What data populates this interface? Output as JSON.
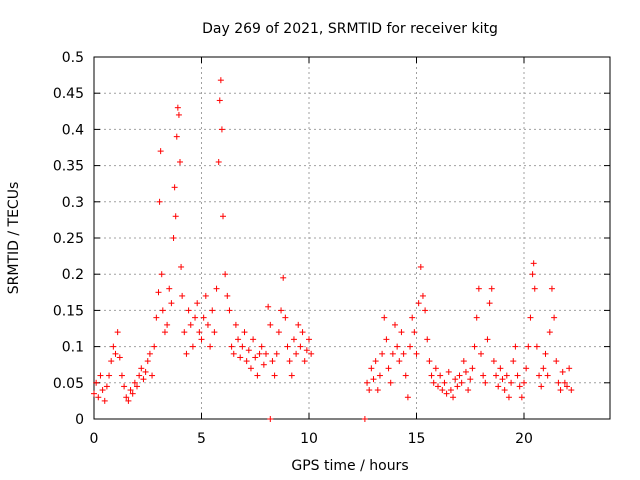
{
  "chart_data": {
    "type": "scatter",
    "title": "Day 269 of 2021, SRMTID for receiver kitg",
    "xlabel": "GPS time / hours",
    "ylabel": "SRMTID / TECUs",
    "xlim": [
      0,
      24
    ],
    "ylim": [
      0,
      0.5
    ],
    "grid": true,
    "marker": "+",
    "color": "#ff0000",
    "xticks": [
      {
        "value": 0,
        "label": "0"
      },
      {
        "value": 5,
        "label": "5"
      },
      {
        "value": 10,
        "label": "10"
      },
      {
        "value": 15,
        "label": "15"
      },
      {
        "value": 20,
        "label": "20"
      }
    ],
    "yticks": [
      {
        "value": 0,
        "label": "0"
      },
      {
        "value": 0.05,
        "label": "0.05"
      },
      {
        "value": 0.1,
        "label": "0.1"
      },
      {
        "value": 0.15,
        "label": "0.15"
      },
      {
        "value": 0.2,
        "label": "0.2"
      },
      {
        "value": 0.25,
        "label": "0.25"
      },
      {
        "value": 0.3,
        "label": "0.3"
      },
      {
        "value": 0.35,
        "label": "0.35"
      },
      {
        "value": 0.4,
        "label": "0.4"
      },
      {
        "value": 0.45,
        "label": "0.45"
      },
      {
        "value": 0.5,
        "label": "0.5"
      }
    ],
    "series": [
      {
        "name": "SRMTID",
        "points": [
          [
            0.0,
            0.035
          ],
          [
            0.1,
            0.05
          ],
          [
            0.2,
            0.03
          ],
          [
            0.3,
            0.06
          ],
          [
            0.4,
            0.04
          ],
          [
            0.5,
            0.025
          ],
          [
            0.6,
            0.045
          ],
          [
            0.7,
            0.06
          ],
          [
            0.8,
            0.08
          ],
          [
            0.9,
            0.1
          ],
          [
            1.0,
            0.09
          ],
          [
            1.1,
            0.12
          ],
          [
            1.2,
            0.085
          ],
          [
            1.3,
            0.06
          ],
          [
            1.4,
            0.045
          ],
          [
            1.5,
            0.03
          ],
          [
            1.6,
            0.025
          ],
          [
            1.7,
            0.04
          ],
          [
            1.8,
            0.035
          ],
          [
            1.9,
            0.05
          ],
          [
            2.0,
            0.045
          ],
          [
            2.1,
            0.06
          ],
          [
            2.2,
            0.07
          ],
          [
            2.3,
            0.055
          ],
          [
            2.4,
            0.065
          ],
          [
            2.5,
            0.08
          ],
          [
            2.6,
            0.09
          ],
          [
            2.7,
            0.06
          ],
          [
            2.8,
            0.1
          ],
          [
            2.9,
            0.14
          ],
          [
            3.0,
            0.175
          ],
          [
            3.05,
            0.3
          ],
          [
            3.1,
            0.37
          ],
          [
            3.15,
            0.2
          ],
          [
            3.2,
            0.15
          ],
          [
            3.3,
            0.12
          ],
          [
            3.4,
            0.13
          ],
          [
            3.5,
            0.18
          ],
          [
            3.6,
            0.16
          ],
          [
            3.7,
            0.25
          ],
          [
            3.75,
            0.32
          ],
          [
            3.8,
            0.28
          ],
          [
            3.85,
            0.39
          ],
          [
            3.9,
            0.43
          ],
          [
            3.95,
            0.42
          ],
          [
            4.0,
            0.355
          ],
          [
            4.05,
            0.21
          ],
          [
            4.1,
            0.17
          ],
          [
            4.2,
            0.12
          ],
          [
            4.3,
            0.09
          ],
          [
            4.4,
            0.15
          ],
          [
            4.5,
            0.13
          ],
          [
            4.6,
            0.1
          ],
          [
            4.7,
            0.14
          ],
          [
            4.8,
            0.16
          ],
          [
            4.9,
            0.12
          ],
          [
            5.0,
            0.11
          ],
          [
            5.1,
            0.14
          ],
          [
            5.2,
            0.17
          ],
          [
            5.3,
            0.13
          ],
          [
            5.4,
            0.1
          ],
          [
            5.5,
            0.15
          ],
          [
            5.6,
            0.12
          ],
          [
            5.7,
            0.18
          ],
          [
            5.8,
            0.355
          ],
          [
            5.85,
            0.44
          ],
          [
            5.9,
            0.468
          ],
          [
            5.95,
            0.4
          ],
          [
            6.0,
            0.28
          ],
          [
            6.1,
            0.2
          ],
          [
            6.2,
            0.17
          ],
          [
            6.3,
            0.15
          ],
          [
            6.4,
            0.1
          ],
          [
            6.5,
            0.09
          ],
          [
            6.6,
            0.13
          ],
          [
            6.7,
            0.11
          ],
          [
            6.8,
            0.085
          ],
          [
            6.9,
            0.1
          ],
          [
            7.0,
            0.12
          ],
          [
            7.1,
            0.08
          ],
          [
            7.2,
            0.095
          ],
          [
            7.3,
            0.07
          ],
          [
            7.4,
            0.11
          ],
          [
            7.5,
            0.085
          ],
          [
            7.6,
            0.06
          ],
          [
            7.7,
            0.09
          ],
          [
            7.8,
            0.1
          ],
          [
            7.9,
            0.075
          ],
          [
            8.0,
            0.09
          ],
          [
            8.1,
            0.155
          ],
          [
            8.2,
            0.13
          ],
          [
            8.3,
            0.08
          ],
          [
            8.4,
            0.06
          ],
          [
            8.5,
            0.09
          ],
          [
            8.6,
            0.12
          ],
          [
            8.7,
            0.15
          ],
          [
            8.8,
            0.195
          ],
          [
            8.9,
            0.14
          ],
          [
            9.0,
            0.1
          ],
          [
            9.1,
            0.08
          ],
          [
            9.2,
            0.06
          ],
          [
            9.3,
            0.11
          ],
          [
            9.4,
            0.09
          ],
          [
            9.5,
            0.13
          ],
          [
            9.6,
            0.1
          ],
          [
            9.7,
            0.12
          ],
          [
            9.8,
            0.08
          ],
          [
            9.9,
            0.095
          ],
          [
            10.0,
            0.11
          ],
          [
            10.1,
            0.09
          ],
          [
            8.2,
            0.0
          ],
          [
            12.6,
            0.0
          ],
          [
            12.7,
            0.05
          ],
          [
            12.8,
            0.04
          ],
          [
            12.9,
            0.07
          ],
          [
            13.0,
            0.055
          ],
          [
            13.1,
            0.08
          ],
          [
            13.2,
            0.04
          ],
          [
            13.3,
            0.06
          ],
          [
            13.4,
            0.09
          ],
          [
            13.5,
            0.14
          ],
          [
            13.6,
            0.11
          ],
          [
            13.7,
            0.07
          ],
          [
            13.8,
            0.05
          ],
          [
            13.9,
            0.09
          ],
          [
            14.0,
            0.13
          ],
          [
            14.1,
            0.1
          ],
          [
            14.2,
            0.08
          ],
          [
            14.3,
            0.12
          ],
          [
            14.4,
            0.09
          ],
          [
            14.5,
            0.06
          ],
          [
            14.6,
            0.03
          ],
          [
            14.7,
            0.1
          ],
          [
            14.8,
            0.14
          ],
          [
            14.9,
            0.12
          ],
          [
            15.0,
            0.09
          ],
          [
            15.1,
            0.16
          ],
          [
            15.2,
            0.21
          ],
          [
            15.3,
            0.17
          ],
          [
            15.4,
            0.15
          ],
          [
            15.5,
            0.11
          ],
          [
            15.6,
            0.08
          ],
          [
            15.7,
            0.06
          ],
          [
            15.8,
            0.05
          ],
          [
            15.9,
            0.07
          ],
          [
            16.0,
            0.045
          ],
          [
            16.1,
            0.06
          ],
          [
            16.2,
            0.04
          ],
          [
            16.3,
            0.05
          ],
          [
            16.4,
            0.035
          ],
          [
            16.5,
            0.065
          ],
          [
            16.6,
            0.04
          ],
          [
            16.7,
            0.03
          ],
          [
            16.8,
            0.055
          ],
          [
            16.9,
            0.045
          ],
          [
            17.0,
            0.06
          ],
          [
            17.1,
            0.05
          ],
          [
            17.2,
            0.08
          ],
          [
            17.3,
            0.065
          ],
          [
            17.4,
            0.04
          ],
          [
            17.5,
            0.055
          ],
          [
            17.6,
            0.07
          ],
          [
            17.7,
            0.1
          ],
          [
            17.8,
            0.14
          ],
          [
            17.9,
            0.18
          ],
          [
            18.0,
            0.09
          ],
          [
            18.1,
            0.06
          ],
          [
            18.2,
            0.05
          ],
          [
            18.3,
            0.11
          ],
          [
            18.4,
            0.16
          ],
          [
            18.5,
            0.18
          ],
          [
            18.6,
            0.08
          ],
          [
            18.7,
            0.06
          ],
          [
            18.8,
            0.045
          ],
          [
            18.9,
            0.07
          ],
          [
            19.0,
            0.055
          ],
          [
            19.1,
            0.04
          ],
          [
            19.2,
            0.06
          ],
          [
            19.3,
            0.03
          ],
          [
            19.4,
            0.05
          ],
          [
            19.5,
            0.08
          ],
          [
            19.6,
            0.1
          ],
          [
            19.7,
            0.06
          ],
          [
            19.8,
            0.045
          ],
          [
            19.9,
            0.03
          ],
          [
            20.0,
            0.05
          ],
          [
            20.1,
            0.07
          ],
          [
            20.2,
            0.1
          ],
          [
            20.3,
            0.14
          ],
          [
            20.4,
            0.2
          ],
          [
            20.45,
            0.215
          ],
          [
            20.5,
            0.18
          ],
          [
            20.6,
            0.1
          ],
          [
            20.7,
            0.06
          ],
          [
            20.8,
            0.045
          ],
          [
            20.9,
            0.07
          ],
          [
            21.0,
            0.09
          ],
          [
            21.1,
            0.06
          ],
          [
            21.2,
            0.12
          ],
          [
            21.3,
            0.18
          ],
          [
            21.4,
            0.14
          ],
          [
            21.5,
            0.08
          ],
          [
            21.6,
            0.05
          ],
          [
            21.7,
            0.04
          ],
          [
            21.8,
            0.065
          ],
          [
            21.9,
            0.05
          ],
          [
            22.0,
            0.045
          ],
          [
            22.1,
            0.07
          ],
          [
            22.2,
            0.04
          ]
        ]
      }
    ]
  }
}
